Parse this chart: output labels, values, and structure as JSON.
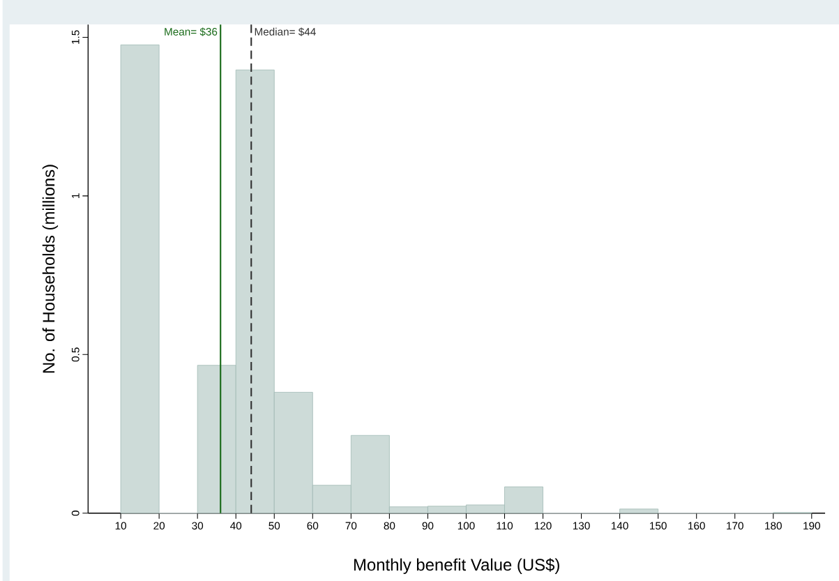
{
  "chart_data": {
    "type": "histogram",
    "xlabel": "Monthly benefit Value (US$)",
    "ylabel": "No. of Households (millions)",
    "bins": [
      10,
      20,
      30,
      40,
      50,
      60,
      70,
      80,
      90,
      100,
      110,
      120,
      130,
      140,
      150,
      160,
      170,
      180,
      190
    ],
    "values": [
      1.476,
      0,
      0.466,
      1.397,
      0.381,
      0.088,
      0.245,
      0.02,
      0.022,
      0.026,
      0.083,
      0,
      0,
      0.013,
      0,
      0,
      0,
      0.002
    ],
    "color": "#cddbd8",
    "xlim": [
      1.5,
      193.5
    ],
    "xticks": [
      10,
      20,
      30,
      40,
      50,
      60,
      70,
      80,
      90,
      100,
      110,
      120,
      130,
      140,
      150,
      160,
      170,
      180,
      190
    ],
    "ylim": [
      0,
      1.54
    ],
    "yticks": [
      0,
      0.5,
      1,
      1.5
    ],
    "ref_lines": [
      {
        "axis": "x",
        "value": 36,
        "label": "Mean= $36",
        "color": "#1a6b1a",
        "line_style": "solid"
      },
      {
        "axis": "x",
        "value": 44,
        "label": "Median= $44",
        "color": "#333333",
        "line_style": "dashed"
      }
    ],
    "grid": false
  }
}
